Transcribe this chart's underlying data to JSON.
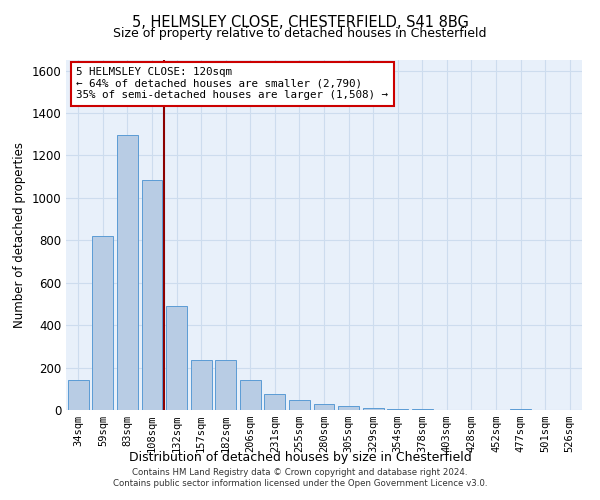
{
  "title_line1": "5, HELMSLEY CLOSE, CHESTERFIELD, S41 8BG",
  "title_line2": "Size of property relative to detached houses in Chesterfield",
  "xlabel": "Distribution of detached houses by size in Chesterfield",
  "ylabel": "Number of detached properties",
  "footer_line1": "Contains HM Land Registry data © Crown copyright and database right 2024.",
  "footer_line2": "Contains public sector information licensed under the Open Government Licence v3.0.",
  "annotation_line1": "5 HELMSLEY CLOSE: 120sqm",
  "annotation_line2": "← 64% of detached houses are smaller (2,790)",
  "annotation_line3": "35% of semi-detached houses are larger (1,508) →",
  "bar_color": "#b8cce4",
  "bar_edge_color": "#5b9bd5",
  "grid_color": "#cddcee",
  "background_color": "#e8f0fa",
  "vline_color": "#8b0000",
  "annotation_box_edge_color": "#cc0000",
  "categories": [
    "34sqm",
    "59sqm",
    "83sqm",
    "108sqm",
    "132sqm",
    "157sqm",
    "182sqm",
    "206sqm",
    "231sqm",
    "255sqm",
    "280sqm",
    "305sqm",
    "329sqm",
    "354sqm",
    "378sqm",
    "403sqm",
    "428sqm",
    "452sqm",
    "477sqm",
    "501sqm",
    "526sqm"
  ],
  "values": [
    140,
    820,
    1295,
    1085,
    490,
    235,
    235,
    140,
    75,
    45,
    30,
    20,
    10,
    5,
    5,
    2,
    1,
    0,
    5,
    0,
    1
  ],
  "vline_x": 3.5,
  "ylim": [
    0,
    1650
  ],
  "yticks": [
    0,
    200,
    400,
    600,
    800,
    1000,
    1200,
    1400,
    1600
  ]
}
